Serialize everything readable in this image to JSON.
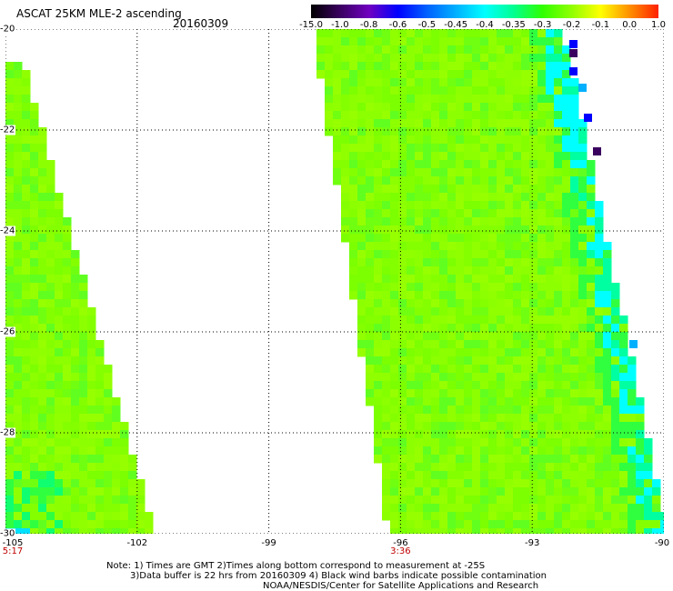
{
  "header": {
    "title": "ASCAT 25KM MLE-2 ascending",
    "date": "20160309"
  },
  "colorbar": {
    "labels": [
      "-15.0",
      "-1.0",
      "-0.8",
      "-0.6",
      "-0.5",
      "-0.45",
      "-0.4",
      "-0.35",
      "-0.3",
      "-0.2",
      "-0.1",
      "0.0",
      "1.0"
    ],
    "colors": [
      "#000000",
      "#3a0060",
      "#7000c0",
      "#0000ff",
      "#0060ff",
      "#00b0ff",
      "#00ffff",
      "#00ff90",
      "#30ff00",
      "#90ff00",
      "#ffff00",
      "#ff9000",
      "#ff2000"
    ]
  },
  "axes": {
    "lat_labels": [
      "-20",
      "-22",
      "-24",
      "-26",
      "-28",
      "-30"
    ],
    "lon_labels": [
      "-105",
      "-102",
      "-99",
      "-96",
      "-93",
      "-90"
    ],
    "lat_range": [
      -30,
      -20
    ],
    "lon_range": [
      -105,
      -90
    ],
    "grid": true
  },
  "times": [
    {
      "label": "5:17",
      "lon": -105
    },
    {
      "label": "3:36",
      "lon": -96
    }
  ],
  "notes": {
    "line1": "Note: 1) Times are GMT 2)Times along bottom correspond to measurement at -25S",
    "line2": "3)Data buffer is 22 hrs from 20160309 4) Black wind barbs indicate possible contamination",
    "line3": "NOAA/NESDIS/Center for Satellite Applications and Research"
  },
  "colors": {
    "main_green": "#8cff00",
    "cyan": "#00ffff",
    "blue": "#0000ff",
    "purple": "#3a0060"
  }
}
